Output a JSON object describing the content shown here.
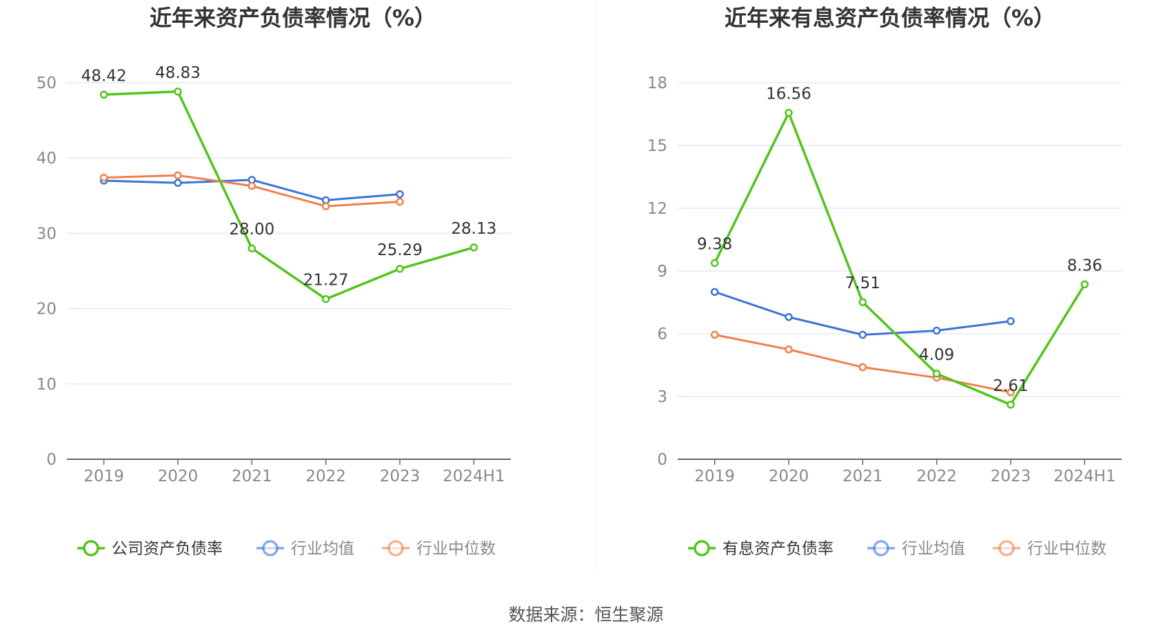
{
  "source_text": "数据来源：恒生聚源",
  "colors": {
    "green": "#52c41a",
    "blue": "#3b73d9",
    "orange": "#f07f4a",
    "grid": "#e3e8f5",
    "axis": "#666666"
  },
  "chart_data": [
    {
      "type": "line",
      "title": "近年来资产负债率情况（%）",
      "categories": [
        "2019",
        "2020",
        "2021",
        "2022",
        "2023",
        "2024H1"
      ],
      "ylim": [
        0,
        50
      ],
      "yticks": [
        0,
        10,
        20,
        30,
        40,
        50
      ],
      "grid": true,
      "legend_position": "bottom",
      "series": [
        {
          "name": "公司资产负债率",
          "color": "#52c41a",
          "values": [
            48.42,
            48.83,
            28.0,
            21.27,
            25.29,
            28.13
          ],
          "labels": [
            "48.42",
            "48.83",
            "28.00",
            "21.27",
            "25.29",
            "28.13"
          ]
        },
        {
          "name": "行业均值",
          "color": "#3b73d9",
          "values": [
            37.0,
            36.7,
            37.1,
            34.4,
            35.2,
            null
          ]
        },
        {
          "name": "行业中位数",
          "color": "#f07f4a",
          "values": [
            37.4,
            37.7,
            36.3,
            33.6,
            34.2,
            null
          ]
        }
      ]
    },
    {
      "type": "line",
      "title": "近年来有息资产负债率情况（%）",
      "categories": [
        "2019",
        "2020",
        "2021",
        "2022",
        "2023",
        "2024H1"
      ],
      "ylim": [
        0,
        18
      ],
      "yticks": [
        0,
        3,
        6,
        9,
        12,
        15,
        18
      ],
      "grid": true,
      "legend_position": "bottom",
      "series": [
        {
          "name": "有息资产负债率",
          "color": "#52c41a",
          "values": [
            9.38,
            16.56,
            7.51,
            4.09,
            2.61,
            8.36
          ],
          "labels": [
            "9.38",
            "16.56",
            "7.51",
            "4.09",
            "2.61",
            "8.36"
          ]
        },
        {
          "name": "行业均值",
          "color": "#3b73d9",
          "values": [
            8.0,
            6.8,
            5.95,
            6.15,
            6.6,
            null
          ]
        },
        {
          "name": "行业中位数",
          "color": "#f07f4a",
          "values": [
            5.95,
            5.25,
            4.4,
            3.9,
            3.2,
            null
          ]
        }
      ]
    }
  ]
}
